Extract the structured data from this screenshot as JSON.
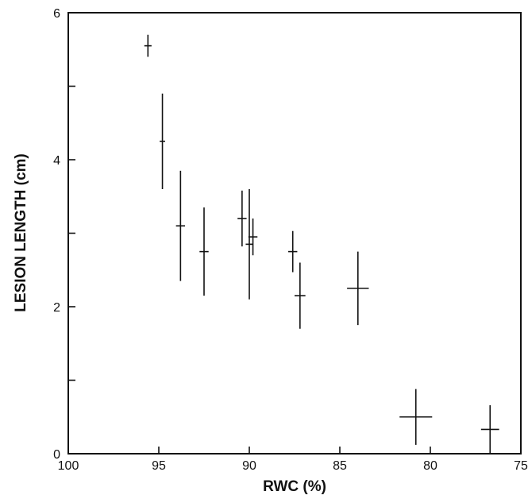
{
  "chart_data": {
    "type": "scatter",
    "title": "",
    "xlabel": "RWC (%)",
    "ylabel": "LESION LENGTH (cm)",
    "xlim": [
      100,
      75
    ],
    "ylim": [
      0,
      6
    ],
    "x_reversed": true,
    "xticks": [
      100,
      95,
      90,
      85,
      80,
      75
    ],
    "xtick_labels": [
      "100",
      "95",
      "90",
      "85",
      "80",
      "75"
    ],
    "yticks": [
      0,
      1,
      2,
      3,
      4,
      5,
      6
    ],
    "ytick_labels": [
      "0",
      "",
      "2",
      "",
      "4",
      "",
      "6"
    ],
    "grid": false,
    "points": [
      {
        "x": 95.6,
        "y": 5.55,
        "x_err": 0.2,
        "y_err": 0.15
      },
      {
        "x": 94.8,
        "y": 4.25,
        "x_err": 0.15,
        "y_err": 0.65
      },
      {
        "x": 93.8,
        "y": 3.1,
        "x_err": 0.25,
        "y_err": 0.75
      },
      {
        "x": 92.5,
        "y": 2.75,
        "x_err": 0.25,
        "y_err": 0.6
      },
      {
        "x": 90.4,
        "y": 3.2,
        "x_err": 0.25,
        "y_err": 0.38
      },
      {
        "x": 90.0,
        "y": 2.85,
        "x_err": 0.2,
        "y_err": 0.75
      },
      {
        "x": 89.8,
        "y": 2.95,
        "x_err": 0.25,
        "y_err": 0.25
      },
      {
        "x": 87.6,
        "y": 2.75,
        "x_err": 0.25,
        "y_err": 0.28
      },
      {
        "x": 87.2,
        "y": 2.15,
        "x_err": 0.3,
        "y_err": 0.45
      },
      {
        "x": 84.0,
        "y": 2.25,
        "x_err": 0.6,
        "y_err": 0.5
      },
      {
        "x": 80.8,
        "y": 0.5,
        "x_err": 0.9,
        "y_err": 0.38
      },
      {
        "x": 76.7,
        "y": 0.33,
        "x_err": 0.5,
        "y_err": 0.33
      }
    ]
  }
}
